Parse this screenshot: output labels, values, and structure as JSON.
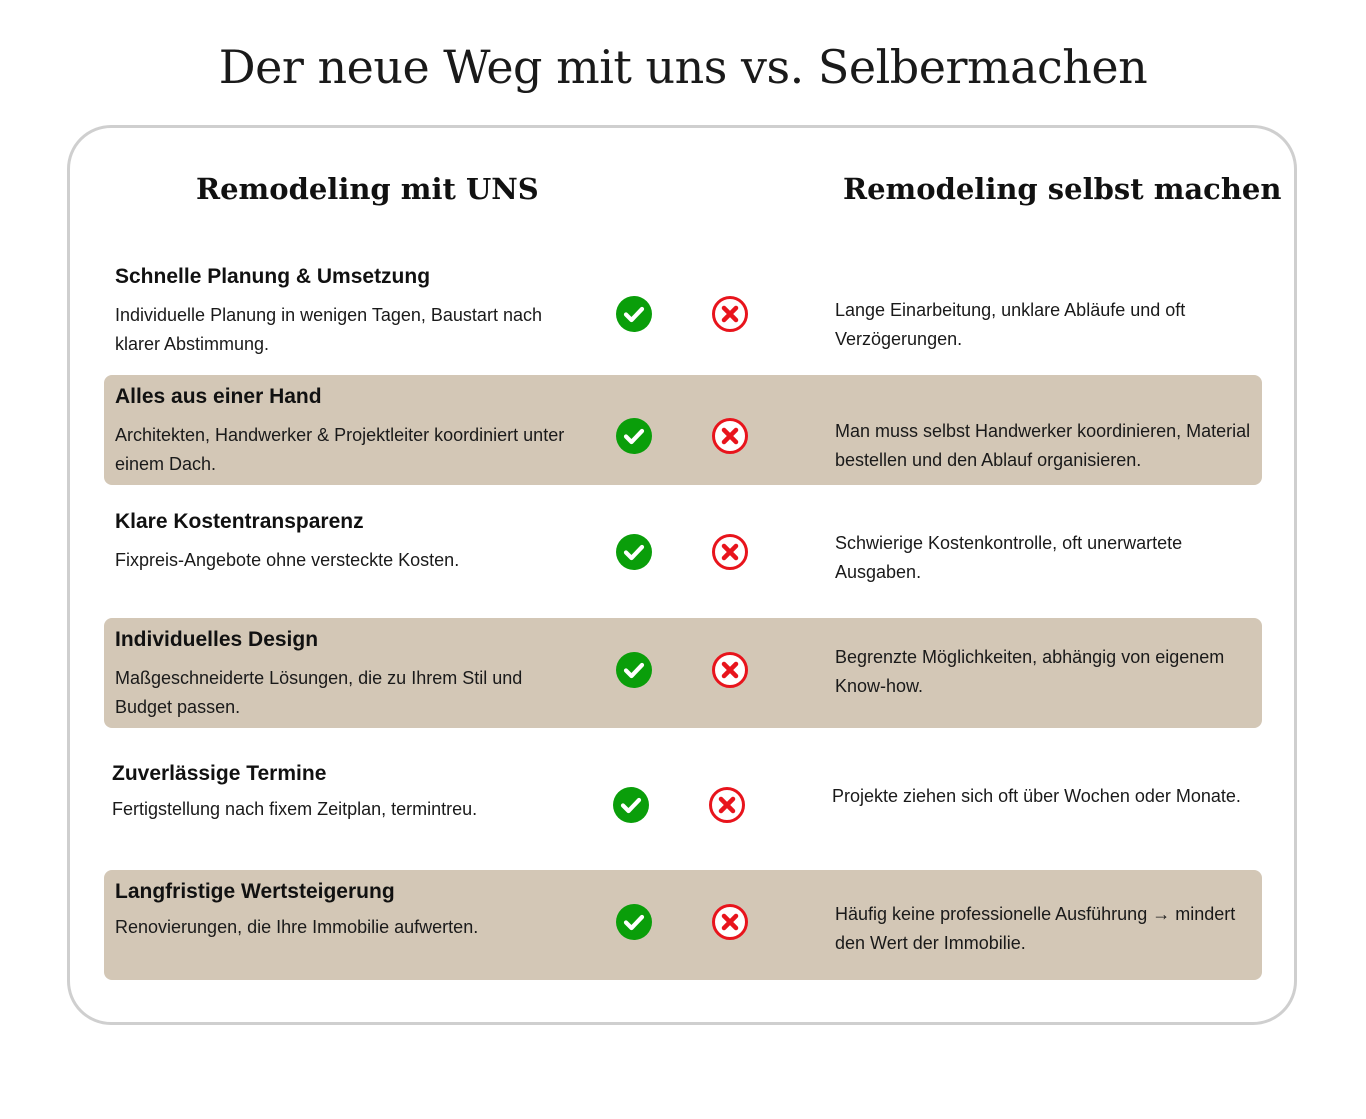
{
  "title": "Der neue Weg mit uns vs. Selbermachen",
  "columns": {
    "left_heading": "Remodeling mit UNS",
    "right_heading": "Remodeling selbst machen"
  },
  "colors": {
    "check": "#0a9e0a",
    "cross": "#e8141c",
    "shaded_row": "#d3c7b6"
  },
  "rows": [
    {
      "title": "Schnelle Planung & Umsetzung",
      "description": "Individuelle Planung in wenigen Tagen, Baustart nach klarer Abstimmung.",
      "comparison": "Lange Einarbeitung, unklare Abläufe und oft Verzögerungen.",
      "check_icon": "check-circle-icon",
      "cross_icon": "x-circle-icon"
    },
    {
      "title": "Alles aus einer Hand",
      "description": "Architekten, Handwerker & Projektleiter koordiniert unter einem Dach.",
      "comparison": "Man muss selbst Handwerker koordinieren, Material bestellen und den Ablauf organisieren.",
      "check_icon": "check-circle-icon",
      "cross_icon": "x-circle-icon"
    },
    {
      "title": "Klare Kostentransparenz",
      "description": "Fixpreis-Angebote ohne versteckte Kosten.",
      "comparison": "Schwierige Kostenkontrolle, oft unerwartete Ausgaben.",
      "check_icon": "check-circle-icon",
      "cross_icon": "x-circle-icon"
    },
    {
      "title": "Individuelles Design",
      "description": "Maßgeschneiderte Lösungen, die zu Ihrem Stil und Budget passen.",
      "comparison": "Begrenzte Möglichkeiten, abhängig von eigenem Know-how.",
      "check_icon": "check-circle-icon",
      "cross_icon": "x-circle-icon"
    },
    {
      "title": "Zuverlässige Termine",
      "description": "Fertigstellung nach fixem Zeitplan, termintreu.",
      "comparison": "Projekte ziehen sich oft über Wochen oder Monate.",
      "check_icon": "check-circle-icon",
      "cross_icon": "x-circle-icon"
    },
    {
      "title": "Langfristige Wertsteigerung",
      "description": "Renovierungen, die Ihre Immobilie aufwerten.",
      "comparison": "Häufig keine professionelle Ausführung → mindert den Wert der Immobilie.",
      "check_icon": "check-circle-icon",
      "cross_icon": "x-circle-icon"
    }
  ]
}
